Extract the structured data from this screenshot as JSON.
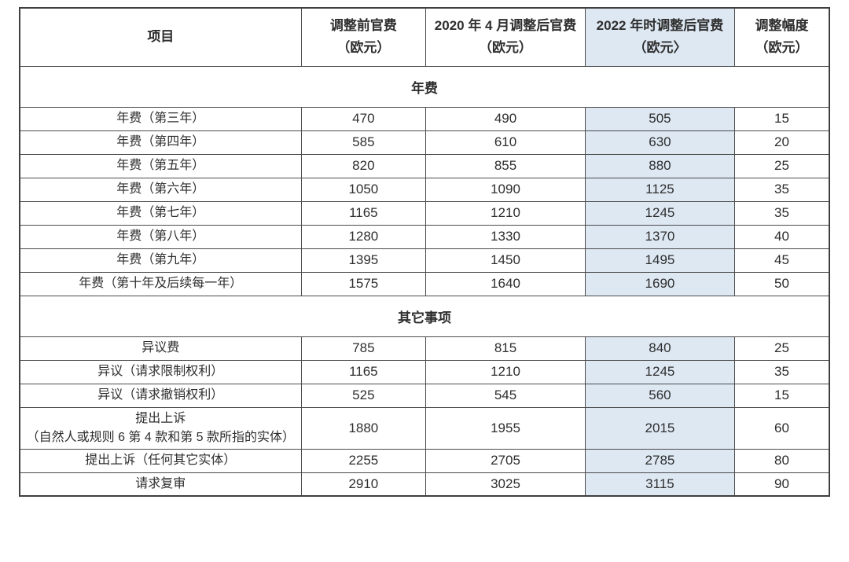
{
  "colors": {
    "highlight_column_bg": "#dee8f3",
    "border": "#4a4a4a",
    "text": "#2e2e2e",
    "page_bg": "#ffffff"
  },
  "table": {
    "columns": [
      {
        "key": "item",
        "label": "项目",
        "highlight": false
      },
      {
        "key": "before",
        "label": "调整前官费\n（欧元）",
        "highlight": false
      },
      {
        "key": "after2020",
        "label": "2020 年 4 月调整后官费\n（欧元）",
        "highlight": false
      },
      {
        "key": "after2022",
        "label": "2022 年时调整后官费\n（欧元〉",
        "highlight": true
      },
      {
        "key": "delta",
        "label": "调整幅度\n（欧元）",
        "highlight": false
      }
    ],
    "sections": [
      {
        "title": "年费",
        "rows": [
          {
            "item": "年费（第三年）",
            "before": "470",
            "after2020": "490",
            "after2022": "505",
            "delta": "15"
          },
          {
            "item": "年费（第四年）",
            "before": "585",
            "after2020": "610",
            "after2022": "630",
            "delta": "20"
          },
          {
            "item": "年费（第五年）",
            "before": "820",
            "after2020": "855",
            "after2022": "880",
            "delta": "25"
          },
          {
            "item": "年费（第六年）",
            "before": "1050",
            "after2020": "1090",
            "after2022": "1125",
            "delta": "35"
          },
          {
            "item": "年费（第七年）",
            "before": "1165",
            "after2020": "1210",
            "after2022": "1245",
            "delta": "35"
          },
          {
            "item": "年费（第八年）",
            "before": "1280",
            "after2020": "1330",
            "after2022": "1370",
            "delta": "40"
          },
          {
            "item": "年费（第九年）",
            "before": "1395",
            "after2020": "1450",
            "after2022": "1495",
            "delta": "45"
          },
          {
            "item": "年费（第十年及后续每一年）",
            "before": "1575",
            "after2020": "1640",
            "after2022": "1690",
            "delta": "50"
          }
        ]
      },
      {
        "title": "其它事项",
        "rows": [
          {
            "item": "异议费",
            "before": "785",
            "after2020": "815",
            "after2022": "840",
            "delta": "25"
          },
          {
            "item": "异议（请求限制权利）",
            "before": "1165",
            "after2020": "1210",
            "after2022": "1245",
            "delta": "35"
          },
          {
            "item": "异议（请求撤销权利）",
            "before": "525",
            "after2020": "545",
            "after2022": "560",
            "delta": "15"
          },
          {
            "item": "提出上诉\n（自然人或规则 6 第 4 款和第 5 款所指的实体）",
            "before": "1880",
            "after2020": "1955",
            "after2022": "2015",
            "delta": "60"
          },
          {
            "item": "提出上诉（任何其它实体）",
            "before": "2255",
            "after2020": "2705",
            "after2022": "2785",
            "delta": "80"
          },
          {
            "item": "请求复审",
            "before": "2910",
            "after2020": "3025",
            "after2022": "3115",
            "delta": "90"
          }
        ]
      }
    ]
  }
}
